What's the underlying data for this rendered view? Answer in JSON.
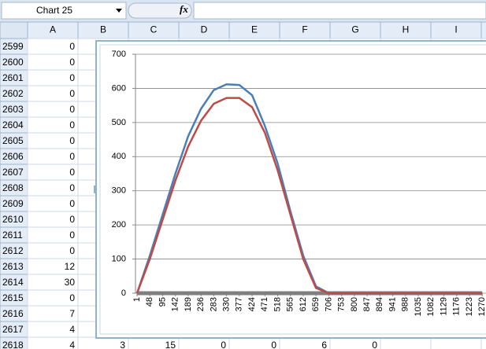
{
  "name_box": "Chart 25",
  "formula_label": "fx",
  "columns": [
    "A",
    "B",
    "C",
    "D",
    "E",
    "F",
    "G",
    "H",
    "I"
  ],
  "rows": [
    {
      "header": 2599,
      "cells": [
        0
      ]
    },
    {
      "header": 2600,
      "cells": [
        0
      ]
    },
    {
      "header": 2601,
      "cells": [
        0
      ]
    },
    {
      "header": 2602,
      "cells": [
        0
      ]
    },
    {
      "header": 2603,
      "cells": [
        0
      ]
    },
    {
      "header": 2604,
      "cells": [
        0
      ]
    },
    {
      "header": 2605,
      "cells": [
        0
      ]
    },
    {
      "header": 2606,
      "cells": [
        0
      ]
    },
    {
      "header": 2607,
      "cells": [
        0
      ]
    },
    {
      "header": 2608,
      "cells": [
        0
      ]
    },
    {
      "header": 2609,
      "cells": [
        0
      ]
    },
    {
      "header": 2610,
      "cells": [
        0
      ]
    },
    {
      "header": 2611,
      "cells": [
        0
      ]
    },
    {
      "header": 2612,
      "cells": [
        0
      ]
    },
    {
      "header": 2613,
      "cells": [
        12
      ]
    },
    {
      "header": 2614,
      "cells": [
        30
      ]
    },
    {
      "header": 2615,
      "cells": [
        0
      ]
    },
    {
      "header": 2616,
      "cells": [
        7
      ]
    },
    {
      "header": 2617,
      "cells": [
        4
      ]
    },
    {
      "header": 2618,
      "cells": [
        4,
        3,
        15,
        0,
        0,
        6,
        0
      ]
    }
  ],
  "chart_data": {
    "type": "line",
    "x": [
      1,
      48,
      95,
      142,
      189,
      236,
      283,
      330,
      377,
      424,
      471,
      518,
      565,
      612,
      659,
      706,
      753,
      800,
      847,
      894,
      941,
      988,
      1035,
      1082,
      1129,
      1176,
      1223,
      1270
    ],
    "series": [
      {
        "color": "#7f7f7f",
        "values": [
          0,
          0,
          0,
          0,
          0,
          0,
          0,
          0,
          0,
          0,
          0,
          0,
          0,
          0,
          0,
          0,
          0,
          0,
          0,
          0,
          0,
          0,
          0,
          0,
          0,
          0,
          0,
          0
        ]
      },
      {
        "color": "#4a7ebb",
        "values": [
          0,
          110,
          230,
          350,
          460,
          540,
          595,
          612,
          610,
          580,
          490,
          380,
          240,
          110,
          20,
          0,
          0,
          0,
          0,
          0,
          0,
          0,
          0,
          0,
          0,
          0,
          0,
          0
        ]
      },
      {
        "color": "#be4b48",
        "values": [
          0,
          100,
          215,
          330,
          430,
          505,
          555,
          572,
          572,
          545,
          470,
          360,
          230,
          100,
          15,
          0,
          0,
          0,
          0,
          0,
          0,
          0,
          0,
          0,
          0,
          0,
          0,
          0
        ]
      }
    ],
    "xlim": [
      1,
      1284
    ],
    "xticks": [
      1,
      48,
      95,
      142,
      189,
      236,
      283,
      330,
      377,
      424,
      471,
      518,
      565,
      612,
      659,
      706,
      753,
      800,
      847,
      894,
      941,
      988,
      1035,
      1082,
      1129,
      1176,
      1223,
      1270
    ],
    "ylim": [
      0,
      700
    ],
    "yticks": [
      0,
      100,
      200,
      300,
      400,
      500,
      600,
      700
    ],
    "grid": true
  }
}
